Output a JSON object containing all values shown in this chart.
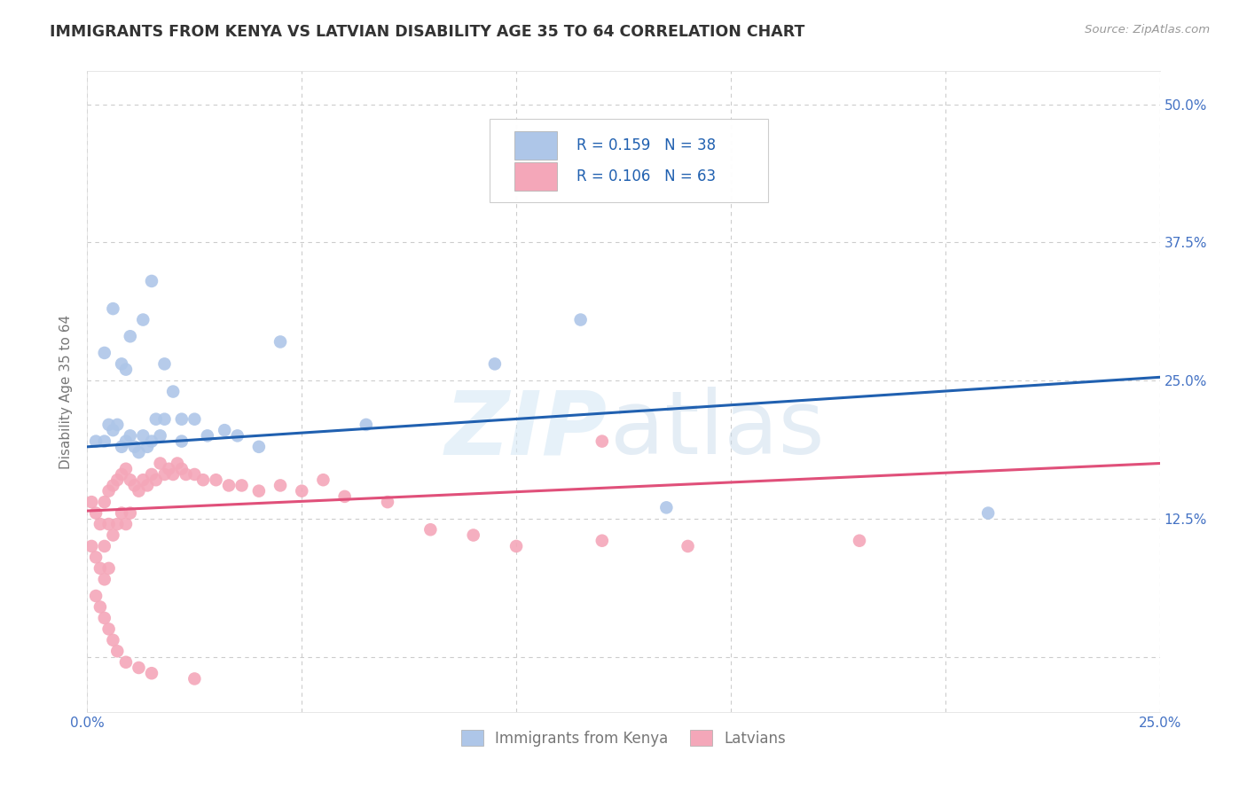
{
  "title": "IMMIGRANTS FROM KENYA VS LATVIAN DISABILITY AGE 35 TO 64 CORRELATION CHART",
  "source": "Source: ZipAtlas.com",
  "ylabel": "Disability Age 35 to 64",
  "xlim": [
    0.0,
    0.25
  ],
  "ylim": [
    -0.05,
    0.53
  ],
  "xtick_positions": [
    0.0,
    0.05,
    0.1,
    0.15,
    0.2,
    0.25
  ],
  "xticklabels": [
    "0.0%",
    "",
    "",
    "",
    "",
    "25.0%"
  ],
  "ytick_positions": [
    0.0,
    0.125,
    0.25,
    0.375,
    0.5
  ],
  "yticklabels_right": [
    "",
    "12.5%",
    "25.0%",
    "37.5%",
    "50.0%"
  ],
  "blue_color": "#aec6e8",
  "pink_color": "#f4a7b9",
  "trend_blue": "#2060b0",
  "trend_pink": "#e0507a",
  "bg_color": "#ffffff",
  "grid_color": "#cccccc",
  "title_color": "#333333",
  "axis_label_color": "#777777",
  "tick_label_color": "#4472c4",
  "kenya_x": [
    0.002,
    0.004,
    0.005,
    0.006,
    0.007,
    0.008,
    0.009,
    0.01,
    0.011,
    0.012,
    0.013,
    0.014,
    0.015,
    0.016,
    0.017,
    0.018,
    0.02,
    0.022,
    0.025,
    0.028,
    0.032,
    0.035,
    0.04,
    0.008,
    0.01,
    0.013,
    0.015,
    0.018,
    0.022,
    0.045,
    0.065,
    0.095,
    0.115,
    0.135,
    0.21,
    0.004,
    0.006,
    0.009
  ],
  "kenya_y": [
    0.195,
    0.195,
    0.21,
    0.205,
    0.21,
    0.19,
    0.195,
    0.2,
    0.19,
    0.185,
    0.2,
    0.19,
    0.195,
    0.215,
    0.2,
    0.215,
    0.24,
    0.215,
    0.215,
    0.2,
    0.205,
    0.2,
    0.19,
    0.265,
    0.29,
    0.305,
    0.34,
    0.265,
    0.195,
    0.285,
    0.21,
    0.265,
    0.305,
    0.135,
    0.13,
    0.275,
    0.315,
    0.26
  ],
  "latvian_x": [
    0.001,
    0.001,
    0.002,
    0.002,
    0.003,
    0.003,
    0.004,
    0.004,
    0.004,
    0.005,
    0.005,
    0.005,
    0.006,
    0.006,
    0.007,
    0.007,
    0.008,
    0.008,
    0.009,
    0.009,
    0.01,
    0.01,
    0.011,
    0.012,
    0.013,
    0.014,
    0.015,
    0.016,
    0.017,
    0.018,
    0.019,
    0.02,
    0.021,
    0.022,
    0.023,
    0.025,
    0.027,
    0.03,
    0.033,
    0.036,
    0.04,
    0.045,
    0.05,
    0.055,
    0.06,
    0.07,
    0.08,
    0.09,
    0.1,
    0.12,
    0.14,
    0.18,
    0.002,
    0.003,
    0.004,
    0.005,
    0.006,
    0.007,
    0.009,
    0.012,
    0.015,
    0.025,
    0.12
  ],
  "latvian_y": [
    0.14,
    0.1,
    0.13,
    0.09,
    0.12,
    0.08,
    0.14,
    0.1,
    0.07,
    0.15,
    0.12,
    0.08,
    0.155,
    0.11,
    0.16,
    0.12,
    0.165,
    0.13,
    0.17,
    0.12,
    0.16,
    0.13,
    0.155,
    0.15,
    0.16,
    0.155,
    0.165,
    0.16,
    0.175,
    0.165,
    0.17,
    0.165,
    0.175,
    0.17,
    0.165,
    0.165,
    0.16,
    0.16,
    0.155,
    0.155,
    0.15,
    0.155,
    0.15,
    0.16,
    0.145,
    0.14,
    0.115,
    0.11,
    0.1,
    0.105,
    0.1,
    0.105,
    0.055,
    0.045,
    0.035,
    0.025,
    0.015,
    0.005,
    -0.005,
    -0.01,
    -0.015,
    -0.02,
    0.195
  ],
  "blue_trend_x": [
    0.0,
    0.25
  ],
  "blue_trend_y": [
    0.19,
    0.253
  ],
  "pink_trend_x": [
    0.0,
    0.25
  ],
  "pink_trend_y": [
    0.132,
    0.175
  ]
}
